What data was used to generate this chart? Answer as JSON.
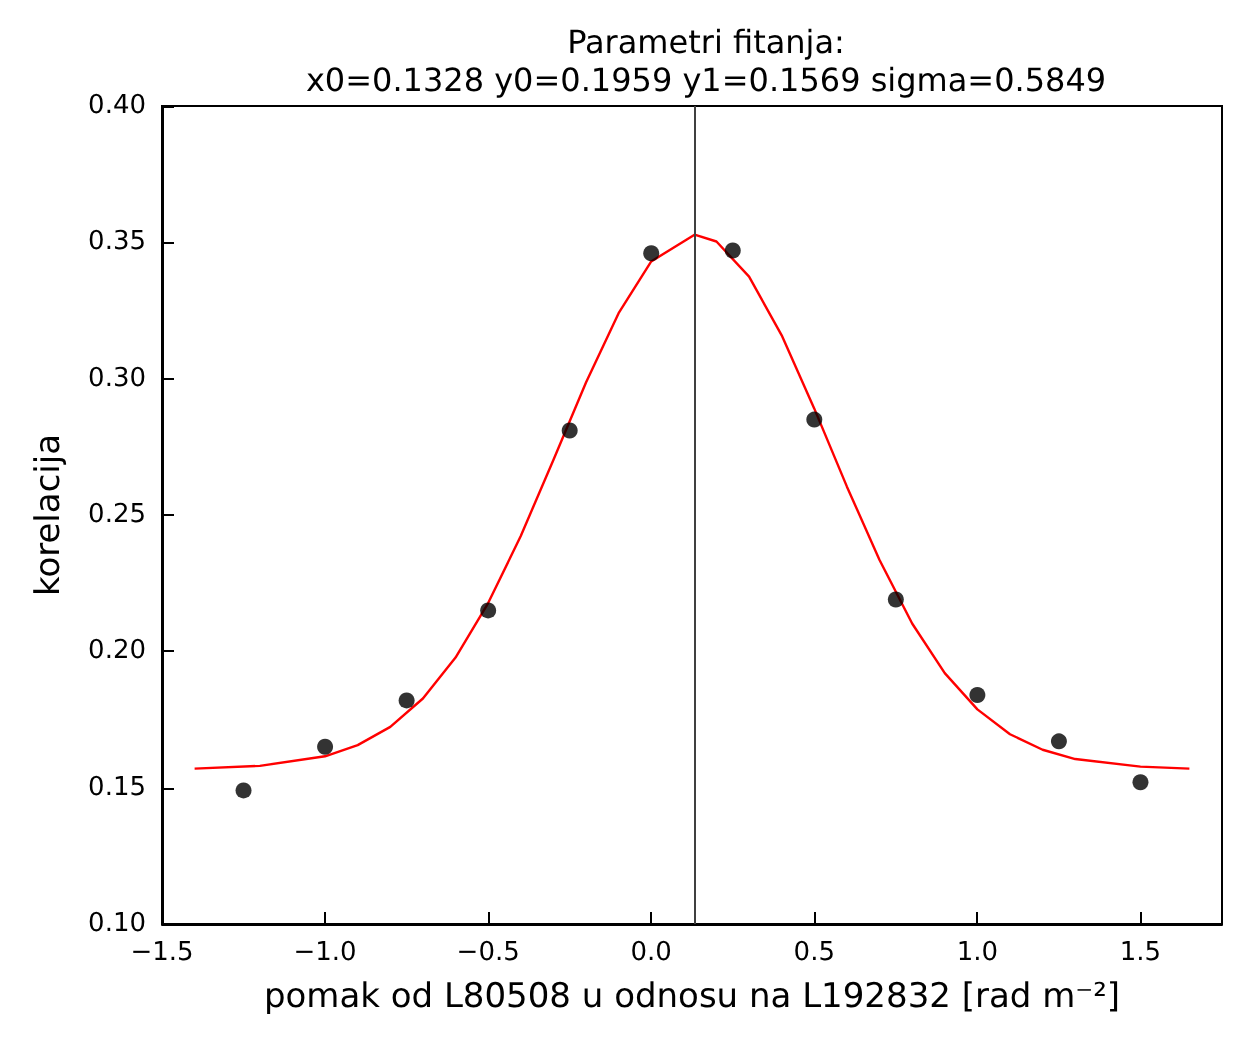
{
  "chart_data": {
    "type": "scatter",
    "title": "Parametri fitanja:",
    "subtitle": "x0=0.1328 y0=0.1959 y1=0.1569 sigma=0.5849",
    "xlabel": "pomak od L80508 u odnosu na L192832 [rad m⁻²]",
    "ylabel": "korelacija",
    "x": [
      -1.25,
      -1.0,
      -0.75,
      -0.5,
      -0.25,
      0.0,
      0.25,
      0.5,
      0.75,
      1.0,
      1.25,
      1.5
    ],
    "series": [
      {
        "color": "#000000",
        "marker": "circle",
        "values": [
          0.149,
          0.165,
          0.182,
          0.215,
          0.281,
          0.346,
          0.347,
          0.285,
          0.219,
          0.184,
          0.167,
          0.152
        ]
      },
      {
        "type": "line",
        "color": "#ff0000",
        "marker": "none",
        "line_style": "solid",
        "x": [
          -1.4,
          -1.2,
          -1.0,
          -0.9,
          -0.8,
          -0.7,
          -0.6,
          -0.5,
          -0.4,
          -0.3,
          -0.2,
          -0.1,
          0.0,
          0.1328,
          0.2,
          0.3,
          0.4,
          0.5,
          0.6,
          0.7,
          0.8,
          0.9,
          1.0,
          1.1,
          1.2,
          1.3,
          1.5,
          1.65
        ],
        "values": [
          0.157,
          0.158,
          0.1615,
          0.1656,
          0.1723,
          0.1827,
          0.1977,
          0.2177,
          0.2423,
          0.2702,
          0.2986,
          0.324,
          0.343,
          0.3528,
          0.3503,
          0.3374,
          0.3159,
          0.289,
          0.2604,
          0.2335,
          0.2102,
          0.192,
          0.1787,
          0.1696,
          0.1639,
          0.1605,
          0.1577,
          0.157
        ]
      }
    ],
    "ref_lines": [
      {
        "axis": "x",
        "value": 0.1328,
        "color": "#404040"
      }
    ],
    "xlim": [
      -1.5,
      1.75
    ],
    "xticks": [
      -1.5,
      {
        "value": -1,
        "label": "−1.0"
      },
      -0.5,
      {
        "value": 0,
        "label": "0.0"
      },
      0.5,
      {
        "value": 1,
        "label": "1.0"
      },
      1.5
    ],
    "ylim": [
      0.1,
      0.4
    ],
    "yticks": [
      {
        "value": 0.1,
        "label": "0.10"
      },
      0.15,
      {
        "value": 0.2,
        "label": "0.20"
      },
      0.25,
      {
        "value": 0.3,
        "label": "0.30"
      },
      0.35,
      {
        "value": 0.4,
        "label": "0.40"
      }
    ],
    "grid": false
  }
}
